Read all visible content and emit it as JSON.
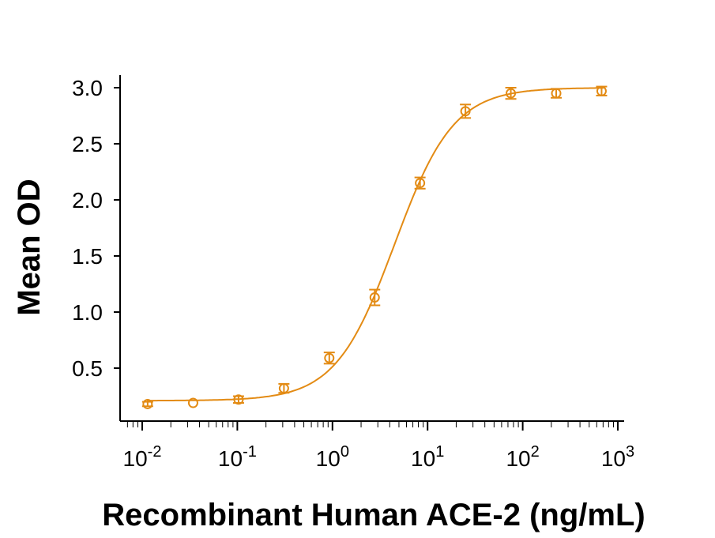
{
  "chart_data": {
    "type": "scatter",
    "title": "",
    "xlabel": "Recombinant Human ACE-2 (ng/mL)",
    "ylabel": "Mean OD",
    "x_scale": "log",
    "xlim": [
      0.007,
      1000
    ],
    "ylim": [
      0.03,
      3.11
    ],
    "x_ticks": [
      {
        "base": "10",
        "exp": "-2"
      },
      {
        "base": "10",
        "exp": "-1"
      },
      {
        "base": "10",
        "exp": "0"
      },
      {
        "base": "10",
        "exp": "1"
      },
      {
        "base": "10",
        "exp": "2"
      },
      {
        "base": "10",
        "exp": "3"
      }
    ],
    "y_ticks": [
      "0.5",
      "1.0",
      "1.5",
      "2.0",
      "2.5",
      "3.0"
    ],
    "grid": false,
    "color": "#E38B14",
    "series": [
      {
        "marker": "open-circle",
        "fit": "sigmoidal curve",
        "x": [
          0.0114,
          0.0343,
          0.103,
          0.309,
          0.926,
          2.78,
          8.33,
          25,
          75,
          225,
          675
        ],
        "y": [
          0.18,
          0.19,
          0.22,
          0.32,
          0.59,
          1.13,
          2.15,
          2.79,
          2.95,
          2.95,
          2.97
        ],
        "error": [
          0.02,
          0.0,
          0.03,
          0.04,
          0.05,
          0.07,
          0.05,
          0.06,
          0.05,
          0.04,
          0.04
        ]
      }
    ]
  }
}
